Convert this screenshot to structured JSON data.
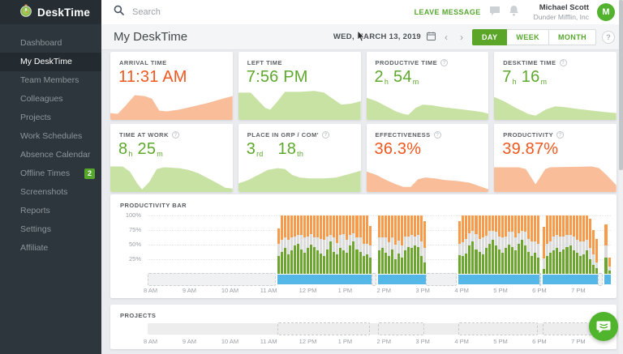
{
  "brand": {
    "name": "DeskTime"
  },
  "sidebar": {
    "items": [
      {
        "label": "Dashboard",
        "active": false
      },
      {
        "label": "My DeskTime",
        "active": true
      },
      {
        "label": "Team Members",
        "active": false
      },
      {
        "label": "Colleagues",
        "active": false
      },
      {
        "label": "Projects",
        "active": false
      },
      {
        "label": "Work Schedules",
        "active": false
      },
      {
        "label": "Absence Calendar",
        "active": false
      },
      {
        "label": "Offline Times",
        "active": false,
        "badge": "2"
      },
      {
        "label": "Screenshots",
        "active": false
      },
      {
        "label": "Reports",
        "active": false
      },
      {
        "label": "Settings",
        "active": false
      },
      {
        "label": "Affiliate",
        "active": false
      }
    ]
  },
  "topbar": {
    "search_placeholder": "Search",
    "leave_message": "LEAVE MESSAGE",
    "user": {
      "name": "Michael Scott",
      "company": "Dunder Mifflin, Inc",
      "avatar_initial": "M"
    }
  },
  "header": {
    "title": "My DeskTime",
    "date": "WED, MARCH 13, 2019",
    "prev": "‹",
    "next": "›",
    "range_tabs": [
      {
        "label": "DAY",
        "active": true
      },
      {
        "label": "WEEK",
        "active": false
      },
      {
        "label": "MONTH",
        "active": false
      }
    ],
    "help": "?"
  },
  "colors": {
    "accent_green": "#5ba629",
    "accent_orange": "#f0571f",
    "bar_green": "#6ca62f",
    "bar_neutral": "#dcdcdc",
    "bar_orange": "#f79b4b",
    "band_blue": "#55b7e8",
    "spark_green": "#c8e2a4",
    "spark_orange": "#f9bd9a"
  },
  "cards": [
    {
      "label": "ARRIVAL TIME",
      "info": false,
      "color": "orange",
      "parts": [
        {
          "t": "11:31 AM"
        }
      ],
      "spark": "0,32 6,33 12,24 20,11 28,12 34,15 40,29 46,30 56,28 68,24 80,20 92,15 100,12"
    },
    {
      "label": "LEFT TIME",
      "info": false,
      "color": "green",
      "parts": [
        {
          "t": "7:56 PM"
        }
      ],
      "spark": "0,8 10,8 16,17 22,26 26,28 32,18 38,7 50,7 62,6 70,8 76,14 84,22 92,21 100,18"
    },
    {
      "label": "PRODUCTIVE TIME",
      "info": true,
      "color": "green",
      "parts": [
        {
          "t": "2"
        },
        {
          "s": "h"
        },
        {
          "t": "54",
          "ml": 6
        },
        {
          "s": "m"
        }
      ],
      "spark": "0,14 8,18 16,24 24,30 30,33 34,34 40,26 46,22 54,23 62,25 74,27 86,29 95,31 100,33"
    },
    {
      "label": "DESKTIME TIME",
      "info": true,
      "color": "green",
      "parts": [
        {
          "t": "7"
        },
        {
          "s": "h"
        },
        {
          "t": "16",
          "ml": 6
        },
        {
          "s": "m"
        }
      ],
      "spark": "0,13 8,18 18,26 28,33 34,35 42,28 50,24 58,25 68,27 80,29 92,31 100,32"
    },
    {
      "label": "TIME AT WORK",
      "info": true,
      "color": "green",
      "parts": [
        {
          "t": "8"
        },
        {
          "s": "h"
        },
        {
          "t": "25",
          "ml": 6
        },
        {
          "s": "m"
        }
      ],
      "spark": "0,10 10,10 16,16 22,30 26,37 32,28 38,13 44,11 56,12 64,14 72,18 80,24 88,30 94,35 100,36"
    },
    {
      "label": "PLACE IN GRP / COM'",
      "info": true,
      "color": "green",
      "parts": [
        {
          "t": "3"
        },
        {
          "s": "rd"
        },
        {
          "t": "18",
          "ml": 18
        },
        {
          "s": "th"
        }
      ],
      "spark": "0,30 8,26 16,20 24,14 32,12 38,13 44,20 50,23 58,24 70,24 80,23 90,19 100,15"
    },
    {
      "label": "EFFECTIVENESS",
      "info": true,
      "color": "orange",
      "parts": [
        {
          "t": "36.3%"
        }
      ],
      "spark": "0,16 8,20 16,26 24,31 30,34 36,34 42,25 48,23 56,24 64,26 74,27 84,29 90,32 100,37"
    },
    {
      "label": "PRODUCTIVITY",
      "info": true,
      "color": "orange",
      "parts": [
        {
          "t": "39.87%"
        }
      ],
      "spark": "0,11 20,11 26,13 30,22 34,31 38,22 42,13 46,11 80,10 86,12 92,20 100,32"
    }
  ],
  "productivity_bar": {
    "title": "PRODUCTIVITY BAR",
    "y_labels": [
      "100%",
      "75%",
      "50%",
      "25%"
    ],
    "x_labels": [
      "8 AM",
      "9 AM",
      "10 AM",
      "11 AM",
      "12 PM",
      "1 PM",
      "2 PM",
      "3 PM",
      "4 PM",
      "5 PM",
      "6 PM",
      "7 PM"
    ],
    "span_minutes": 715,
    "gaps": [
      [
        0,
        200
      ],
      [
        345,
        355
      ],
      [
        430,
        480
      ],
      [
        605,
        610
      ],
      [
        695,
        705
      ]
    ],
    "groups": [
      {
        "start": 200,
        "end": 345,
        "bars": [
          [
            30,
            22,
            78
          ],
          [
            38,
            20,
            100
          ],
          [
            45,
            18,
            100
          ],
          [
            33,
            26,
            100
          ],
          [
            40,
            22,
            100
          ],
          [
            48,
            16,
            100
          ],
          [
            52,
            14,
            100
          ],
          [
            42,
            24,
            100
          ],
          [
            36,
            26,
            100
          ],
          [
            44,
            20,
            100
          ],
          [
            50,
            18,
            100
          ],
          [
            46,
            16,
            100
          ],
          [
            40,
            22,
            100
          ],
          [
            35,
            25,
            100
          ],
          [
            30,
            28,
            100
          ],
          [
            42,
            22,
            100
          ],
          [
            55,
            12,
            100
          ],
          [
            38,
            24,
            100
          ],
          [
            33,
            20,
            100
          ],
          [
            45,
            22,
            100
          ],
          [
            40,
            28,
            100
          ],
          [
            36,
            22,
            100
          ],
          [
            48,
            18,
            100
          ],
          [
            56,
            14,
            100
          ],
          [
            42,
            20,
            100
          ],
          [
            38,
            24,
            100
          ],
          [
            30,
            22,
            100
          ],
          [
            34,
            18,
            100
          ],
          [
            28,
            20,
            82
          ]
        ]
      },
      {
        "start": 355,
        "end": 430,
        "bars": [
          [
            40,
            22,
            100
          ],
          [
            44,
            18,
            100
          ],
          [
            36,
            26,
            100
          ],
          [
            30,
            24,
            100
          ],
          [
            42,
            20,
            100
          ],
          [
            25,
            25,
            100
          ],
          [
            35,
            22,
            100
          ],
          [
            28,
            20,
            100
          ],
          [
            40,
            24,
            100
          ],
          [
            46,
            18,
            100
          ],
          [
            44,
            22,
            100
          ],
          [
            48,
            16,
            100
          ],
          [
            46,
            20,
            100
          ],
          [
            30,
            26,
            100
          ],
          [
            20,
            25,
            90
          ]
        ]
      },
      {
        "start": 480,
        "end": 605,
        "bars": [
          [
            32,
            20,
            90
          ],
          [
            30,
            24,
            100
          ],
          [
            35,
            25,
            100
          ],
          [
            48,
            22,
            100
          ],
          [
            55,
            18,
            100
          ],
          [
            42,
            26,
            100
          ],
          [
            38,
            22,
            100
          ],
          [
            34,
            28,
            100
          ],
          [
            45,
            20,
            100
          ],
          [
            52,
            22,
            100
          ],
          [
            58,
            16,
            100
          ],
          [
            48,
            24,
            100
          ],
          [
            42,
            22,
            100
          ],
          [
            36,
            26,
            100
          ],
          [
            44,
            20,
            100
          ],
          [
            50,
            22,
            100
          ],
          [
            46,
            26,
            100
          ],
          [
            40,
            22,
            100
          ],
          [
            52,
            18,
            100
          ],
          [
            58,
            16,
            100
          ],
          [
            48,
            24,
            100
          ],
          [
            38,
            22,
            100
          ],
          [
            30,
            26,
            100
          ],
          [
            36,
            20,
            100
          ],
          [
            28,
            24,
            100
          ]
        ]
      },
      {
        "start": 610,
        "end": 695,
        "bars": [
          [
            8,
            18,
            80
          ],
          [
            30,
            22,
            100
          ],
          [
            36,
            20,
            100
          ],
          [
            40,
            24,
            100
          ],
          [
            44,
            22,
            100
          ],
          [
            38,
            26,
            100
          ],
          [
            42,
            22,
            100
          ],
          [
            46,
            20,
            100
          ],
          [
            48,
            18,
            100
          ],
          [
            40,
            24,
            100
          ],
          [
            36,
            22,
            100
          ],
          [
            30,
            26,
            100
          ],
          [
            34,
            22,
            100
          ],
          [
            40,
            18,
            100
          ],
          [
            25,
            20,
            95
          ],
          [
            15,
            18,
            75
          ],
          [
            10,
            10,
            60
          ]
        ]
      },
      {
        "start": 705,
        "end": 715,
        "bars": [
          [
            28,
            20,
            85
          ],
          [
            5,
            8,
            28
          ]
        ]
      }
    ]
  },
  "projects": {
    "title": "PROJECTS",
    "x_labels": [
      "8 AM",
      "9 AM",
      "10 AM",
      "11 AM",
      "12 PM",
      "1 PM",
      "2 PM",
      "3 PM",
      "4 PM",
      "5 PM",
      "6 PM",
      "7 PM"
    ],
    "span_minutes": 715,
    "segments": [
      [
        200,
        345
      ],
      [
        355,
        430
      ],
      [
        480,
        605
      ],
      [
        610,
        695
      ],
      [
        705,
        715
      ]
    ]
  }
}
